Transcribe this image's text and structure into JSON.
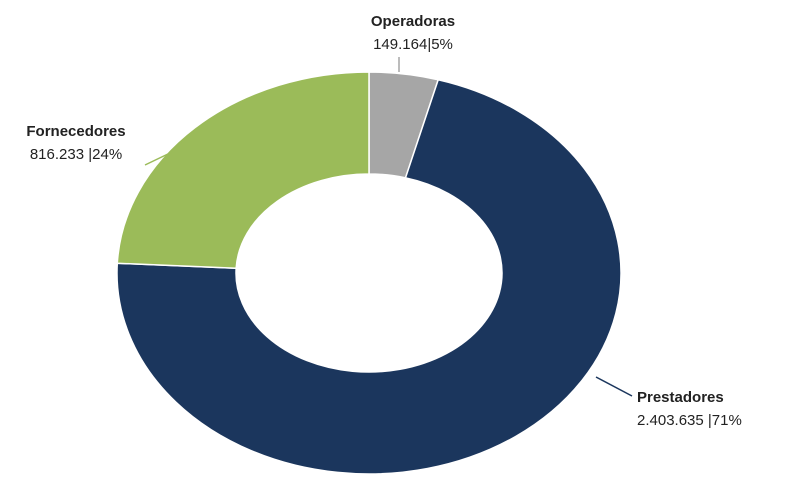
{
  "chart_data": {
    "type": "donut",
    "categories": [
      "Operadoras",
      "Prestadores",
      "Fornecedores"
    ],
    "values": [
      149164,
      2403635,
      816233
    ],
    "value_labels": [
      "149.164|5%",
      "2.403.635 |71%",
      "816.233 |24%"
    ],
    "colors": [
      "#a6a6a6",
      "#1b365d",
      "#9bbb59"
    ]
  }
}
